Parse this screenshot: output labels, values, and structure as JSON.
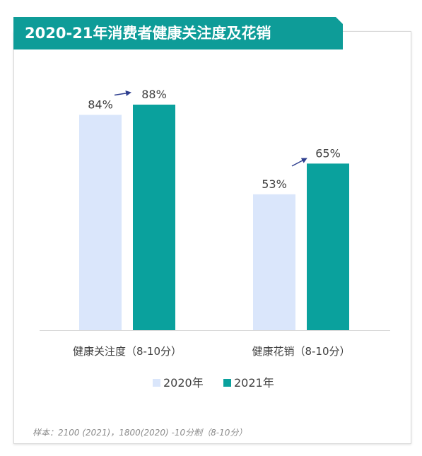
{
  "title": "2020-21年消费者健康关注度及花销",
  "footnote": "样本：2100 (2021)，1800(2020) -10分制（8-10分）",
  "colors": {
    "banner": "#0e9c98",
    "series_2020": "#dae6fb",
    "series_2021": "#0aa19d",
    "arrow": "#2e3f8f",
    "axis": "#d9d9d9",
    "text": "#404040"
  },
  "chart_data": {
    "type": "bar",
    "categories": [
      "健康关注度（8-10分）",
      "健康花销（8-10分）"
    ],
    "series": [
      {
        "name": "2020年",
        "values": [
          84,
          53
        ],
        "labels": [
          "84%",
          "53%"
        ]
      },
      {
        "name": "2021年",
        "values": [
          88,
          65
        ],
        "labels": [
          "88%",
          "65%"
        ]
      }
    ],
    "ylim": [
      0,
      100
    ],
    "grid": false,
    "legend": "bottom",
    "arrows": "from 2020 label to 2021 label in each group"
  }
}
